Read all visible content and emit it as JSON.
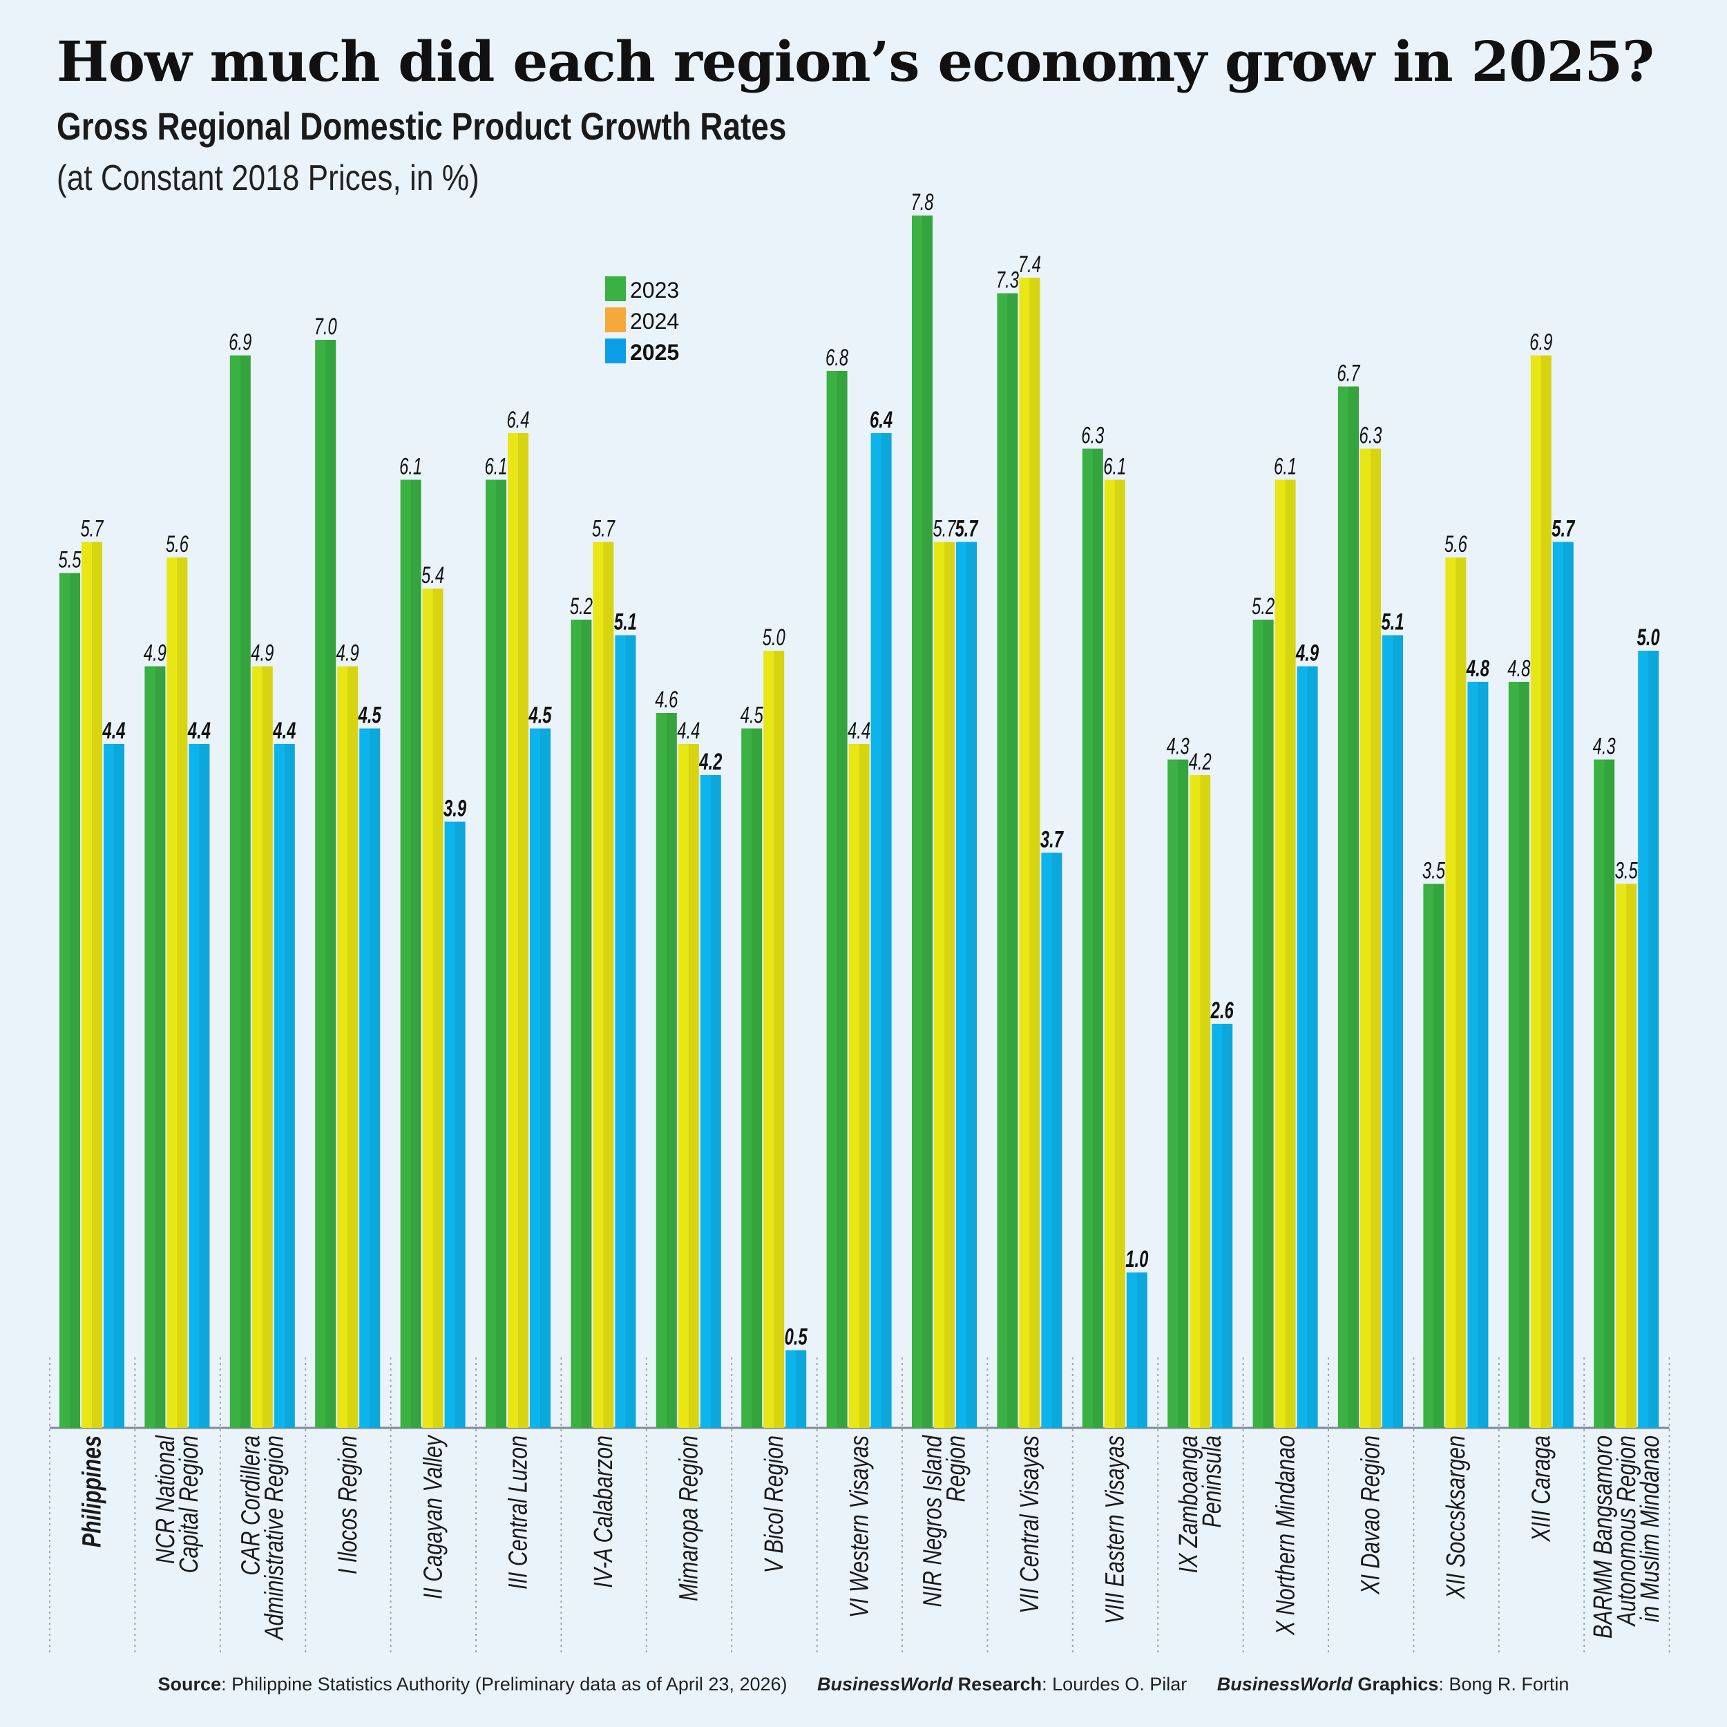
{
  "title": "How much did each region’s economy grow in 2025?",
  "subtitle": "Gross Regional Domestic Product Growth Rates",
  "unit_note": "(at Constant 2018 Prices, in %)",
  "chart_data": {
    "type": "bar",
    "title": "How much did each region’s economy grow in 2025?",
    "ylim": [
      0,
      8
    ],
    "grid": false,
    "legend_placement": "top-center",
    "categories": [
      "Philippines",
      "NCR National\nCapital Region",
      "CAR Cordillera\nAdministrative Region",
      "I Ilocos Region",
      "II Cagayan Valley",
      "III Central Luzon",
      "IV-A Calabarzon",
      "Mimaropa Region",
      "V Bicol Region",
      "VI Western Visayas",
      "NIR Negros Island\nRegion",
      "VII Central Visayas",
      "VIII Eastern Visayas",
      "IX Zamboanga\nPeninsula",
      "X Northern Mindanao",
      "XI Davao Region",
      "XII Soccsksargen",
      "XIII Caraga",
      "BARMM Bangsamoro\nAutonomous Region\nin Muslim Mindanao"
    ],
    "series": [
      {
        "name": "2023",
        "color": "#3bb143",
        "legend_color": "#3bb143",
        "values": [
          5.5,
          4.9,
          6.9,
          7.0,
          6.1,
          6.1,
          5.2,
          4.6,
          4.5,
          6.8,
          7.8,
          7.3,
          6.3,
          4.3,
          5.2,
          6.7,
          3.5,
          4.8,
          4.3
        ]
      },
      {
        "name": "2024",
        "color": "#e8e614",
        "legend_color": "#f4a93a",
        "values": [
          5.7,
          5.6,
          4.9,
          4.9,
          5.4,
          6.4,
          5.7,
          4.4,
          5.0,
          4.4,
          5.7,
          7.4,
          6.1,
          4.2,
          6.1,
          6.3,
          5.6,
          6.9,
          3.5
        ]
      },
      {
        "name": "2025",
        "color": "#0db4ec",
        "legend_color": "#0d9fe6",
        "values": [
          4.4,
          4.4,
          4.4,
          4.5,
          3.9,
          4.5,
          5.1,
          4.2,
          0.5,
          6.4,
          5.7,
          3.7,
          1.0,
          2.6,
          4.9,
          5.1,
          4.8,
          5.7,
          5.0
        ]
      }
    ]
  },
  "footer": {
    "source_label": "Source",
    "source_text": ": Philippine Statistics Authority (Preliminary data as of April 23, 2026)",
    "brand": "BusinessWorld",
    "research_label": " Research",
    "research_text": ": Lourdes O. Pilar",
    "graphics_label": " Graphics",
    "graphics_text": ": Bong R. Fortin"
  }
}
